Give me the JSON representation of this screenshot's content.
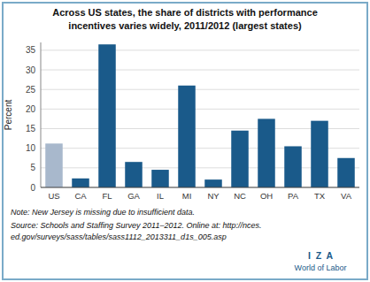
{
  "chart_data": {
    "type": "bar",
    "title": "Across US states, the share of districts with performance",
    "subtitle": "incentives varies widely, 2011/2012 (largest states)",
    "categories": [
      "US",
      "CA",
      "FL",
      "GA",
      "IL",
      "MI",
      "NY",
      "NC",
      "OH",
      "PA",
      "TX",
      "VA"
    ],
    "values": [
      11.2,
      2.3,
      36.5,
      6.5,
      4.5,
      26.0,
      2.0,
      14.5,
      17.5,
      10.5,
      17.0,
      7.5
    ],
    "colors": [
      "#a8b8cc",
      "#1a5a8a",
      "#1a5a8a",
      "#1a5a8a",
      "#1a5a8a",
      "#1a5a8a",
      "#1a5a8a",
      "#1a5a8a",
      "#1a5a8a",
      "#1a5a8a",
      "#1a5a8a",
      "#1a5a8a"
    ],
    "ylabel": "Percent",
    "ylim": [
      0,
      37
    ],
    "yticks": [
      0,
      5,
      10,
      15,
      20,
      25,
      30,
      35
    ],
    "grid": true,
    "annotations": [
      "Note: New Jersey is missing due to insufficient data.",
      "Source: Schools and Staffing Survey 2011–2012. Online at: http://nces.",
      "ed.gov/surveys/sass/tables/sass1112_2013311_d1s_005.asp",
      "I  Z  A",
      "World of Labor"
    ]
  }
}
